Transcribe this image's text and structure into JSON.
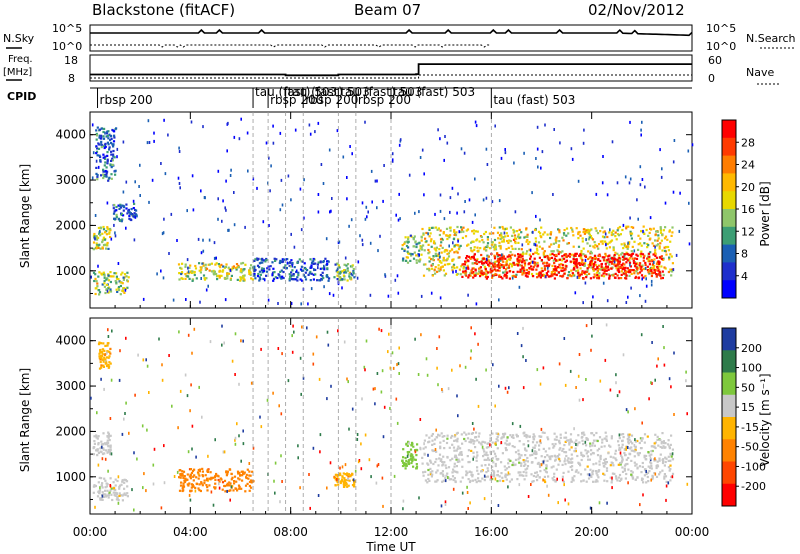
{
  "header": {
    "radar": "Blackstone (fitACF)",
    "beam": "Beam 07",
    "date": "02/Nov/2012"
  },
  "top_panels": {
    "nsky_label": "N.Sky",
    "nsearch_label": "N.Search",
    "noise_ticks": [
      "10^5",
      "10^0"
    ],
    "noise_ticks_right": [
      "10^5",
      "10^0"
    ],
    "freq_label_1": "Freq.",
    "freq_label_2": "[MHz]",
    "freq_ticks": [
      "18",
      "8"
    ],
    "nave_label": "Nave",
    "nave_ticks": [
      "60",
      "0"
    ],
    "cpid_label": "CPID"
  },
  "cpid_segments": [
    {
      "label": "rbsp 200",
      "start": 0.3
    },
    {
      "label": "tau (fast) 503",
      "start": 6.5
    },
    {
      "label": "rbsp 200",
      "start": 7.1
    },
    {
      "label": "tau (fast) 503",
      "start": 7.8
    },
    {
      "label": "rbsp 200",
      "start": 8.5
    },
    {
      "label": "tau (fast) 503",
      "start": 9.9
    },
    {
      "label": "rbsp 200",
      "start": 10.6
    },
    {
      "label": "tau (fast) 503",
      "start": 12.0
    },
    {
      "label": "tau (fast) 503",
      "start": 16.0
    }
  ],
  "power_colorbar": {
    "label": "Power [dB]",
    "ticks": [
      "28",
      "24",
      "20",
      "16",
      "12",
      "8",
      "4"
    ],
    "colors": [
      "#ff0000",
      "#ff3a00",
      "#ff7d00",
      "#ffb900",
      "#e8d800",
      "#8fc66a",
      "#3c9e74",
      "#1a5fb4",
      "#1e2fcc",
      "#0000ff"
    ]
  },
  "velocity_colorbar": {
    "label": "Velocity [m s⁻¹]",
    "ticks": [
      "200",
      "100",
      "50",
      "15",
      "-15",
      "-50",
      "-100",
      "-200"
    ],
    "colors": [
      "#1e3ca0",
      "#2e7b4a",
      "#7ec83c",
      "#c8c8c8",
      "#ffb400",
      "#ff8200",
      "#ff4600",
      "#ff0000"
    ]
  },
  "chart_data": {
    "type": "heatmap",
    "xlabel": "Time UT",
    "ylabel": "Slant Range [km]",
    "x_ticks": [
      "00:00",
      "04:00",
      "08:00",
      "12:00",
      "16:00",
      "20:00",
      "00:00"
    ],
    "y_ticks": [
      "1000",
      "2000",
      "3000",
      "4000"
    ],
    "xlim": [
      0,
      24
    ],
    "ylim": [
      180,
      4500
    ],
    "vertical_markers": [
      6.5,
      7.1,
      7.8,
      8.5,
      9.9,
      10.6,
      12.0,
      16.0
    ],
    "freq_series": {
      "name": "Freq.",
      "ylim": [
        8,
        18
      ],
      "x": [
        0,
        6.5,
        7.8,
        9.9,
        12.0,
        13.0,
        13.1,
        24
      ],
      "y": [
        10.5,
        10.5,
        10.2,
        10.5,
        10.5,
        10.6,
        14.5,
        14.5
      ]
    },
    "power_regions": [
      {
        "t0": 0.1,
        "t1": 1.5,
        "r0": 500,
        "r1": 1000,
        "value": 14
      },
      {
        "t0": 0.1,
        "t1": 0.8,
        "r0": 1500,
        "r1": 2000,
        "value": 14
      },
      {
        "t0": 0.2,
        "t1": 1.0,
        "r0": 3000,
        "r1": 4200,
        "value": 6
      },
      {
        "t0": 0.9,
        "t1": 1.8,
        "r0": 2100,
        "r1": 2500,
        "value": 6
      },
      {
        "t0": 3.5,
        "t1": 6.5,
        "r0": 800,
        "r1": 1200,
        "value": 14
      },
      {
        "t0": 6.5,
        "t1": 9.5,
        "r0": 800,
        "r1": 1300,
        "value": 5
      },
      {
        "t0": 9.7,
        "t1": 10.5,
        "r0": 800,
        "r1": 1200,
        "value": 10
      },
      {
        "t0": 12.4,
        "t1": 13.2,
        "r0": 1200,
        "r1": 1800,
        "value": 12
      },
      {
        "t0": 13.2,
        "t1": 23.2,
        "r0": 900,
        "r1": 2000,
        "value": 16
      },
      {
        "t0": 14.8,
        "t1": 22.8,
        "r0": 850,
        "r1": 1400,
        "value": 28
      }
    ],
    "velocity_regions": [
      {
        "t0": 0.1,
        "t1": 1.5,
        "r0": 500,
        "r1": 1000,
        "value": 0
      },
      {
        "t0": 0.1,
        "t1": 0.8,
        "r0": 1500,
        "r1": 2000,
        "value": 0
      },
      {
        "t0": 0.3,
        "t1": 0.8,
        "r0": 3400,
        "r1": 4000,
        "value": -30
      },
      {
        "t0": 3.5,
        "t1": 6.5,
        "r0": 700,
        "r1": 1200,
        "value": -60
      },
      {
        "t0": 9.7,
        "t1": 10.5,
        "r0": 800,
        "r1": 1100,
        "value": -30
      },
      {
        "t0": 12.4,
        "t1": 13.0,
        "r0": 1200,
        "r1": 1800,
        "value": 40
      },
      {
        "t0": 13.2,
        "t1": 23.2,
        "r0": 900,
        "r1": 2000,
        "value": 0
      }
    ]
  }
}
